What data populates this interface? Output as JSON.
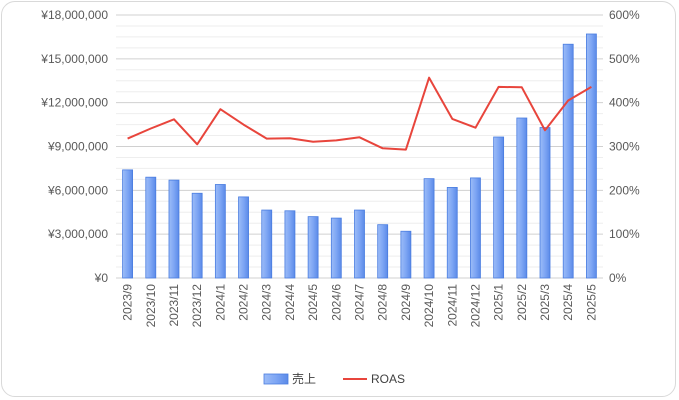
{
  "chart_data": {
    "type": "bar",
    "categories": [
      "2023/9",
      "2023/10",
      "2023/11",
      "2023/12",
      "2024/1",
      "2024/2",
      "2024/3",
      "2024/4",
      "2024/5",
      "2024/6",
      "2024/7",
      "2024/8",
      "2024/9",
      "2024/10",
      "2024/11",
      "2024/12",
      "2025/1",
      "2025/2",
      "2025/3",
      "2025/4",
      "2025/5"
    ],
    "series": [
      {
        "name": "売上",
        "type": "bar",
        "axis": "left",
        "color": "#7ea6f4",
        "values": [
          7400000,
          6900000,
          6700000,
          5800000,
          6400000,
          5550000,
          4650000,
          4600000,
          4200000,
          4100000,
          4650000,
          3650000,
          3200000,
          6800000,
          6200000,
          6850000,
          9650000,
          10950000,
          10300000,
          16000000,
          16700000
        ]
      },
      {
        "name": "ROAS",
        "type": "line",
        "axis": "right",
        "color": "#e8453c",
        "values": [
          3.18,
          3.41,
          3.62,
          3.05,
          3.85,
          3.5,
          3.18,
          3.19,
          3.11,
          3.14,
          3.21,
          2.96,
          2.93,
          4.57,
          3.63,
          3.43,
          4.36,
          4.35,
          3.37,
          4.05,
          4.36
        ]
      }
    ],
    "y_left": {
      "min": 0,
      "max": 18000000,
      "ticks": [
        "¥0",
        "¥3,000,000",
        "¥6,000,000",
        "¥9,000,000",
        "¥12,000,000",
        "¥15,000,000",
        "¥18,000,000"
      ]
    },
    "y_right": {
      "min": 0,
      "max": 6,
      "ticks": [
        "0%",
        "100%",
        "200%",
        "300%",
        "400%",
        "500%",
        "600%"
      ]
    },
    "grid": true,
    "legend_position": "bottom",
    "title": "",
    "xlabel": "",
    "ylabel": ""
  }
}
